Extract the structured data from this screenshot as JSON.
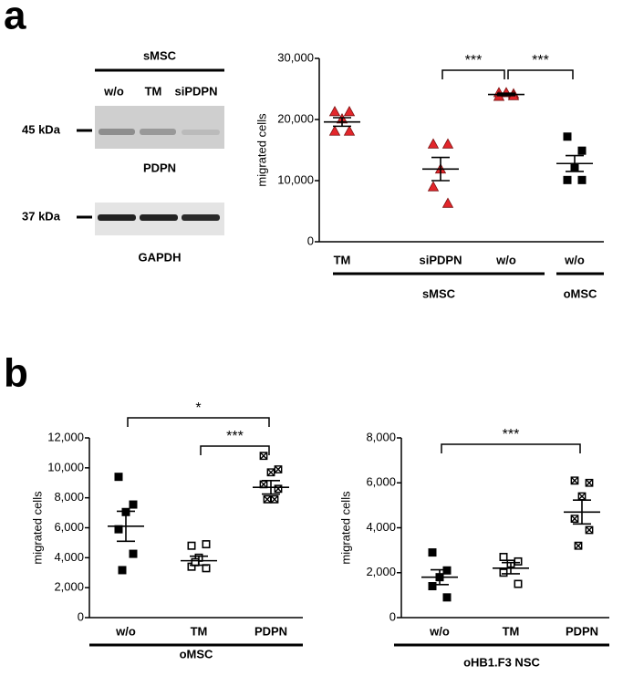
{
  "panel_labels": [
    "a",
    "b"
  ],
  "blot": {
    "header": "sMSC",
    "lanes": [
      "w/o",
      "TM",
      "siPDPN"
    ],
    "markers": [
      "45 kDa",
      "37 kDa"
    ],
    "proteins": [
      "PDPN",
      "GAPDH"
    ]
  },
  "chart_data": [
    {
      "type": "dot",
      "y_label": "migrated cells",
      "categories": [
        "TM",
        "siPDPN",
        "w/o",
        "w/o"
      ],
      "values": [
        [
          21300,
          21300,
          20100,
          18100,
          18100
        ],
        [
          16000,
          16000,
          11900,
          9000,
          6300
        ],
        [
          24400,
          24200,
          24400,
          23800,
          23900
        ],
        [
          17200,
          14900,
          12200,
          10100,
          10100
        ]
      ],
      "mean": [
        19600,
        11900,
        24100,
        12800
      ],
      "sem": [
        700,
        1900,
        200,
        1300
      ],
      "markers": [
        "triangle",
        "triangle",
        "triangle",
        "square-filled"
      ],
      "colors": [
        "#e3262b",
        "#e3262b",
        "#e3262b",
        "#000000"
      ],
      "ylim": [
        0,
        30000
      ],
      "yticks": [
        0,
        {
          "value": 10000,
          "label": "10,000"
        },
        {
          "value": 20000,
          "label": "20,000"
        },
        {
          "value": 30000,
          "label": "30,000"
        }
      ],
      "groups": [
        {
          "label": "sMSC",
          "span": [
            0,
            2
          ]
        },
        {
          "label": "oMSC",
          "span": [
            3,
            3
          ]
        }
      ],
      "brackets": [
        {
          "label": "***",
          "between": [
            1,
            2
          ]
        },
        {
          "label": "***",
          "between": [
            2,
            3
          ]
        }
      ]
    },
    {
      "type": "dot",
      "y_label": "migrated cells",
      "categories": [
        "w/o",
        "TM",
        "PDPN"
      ],
      "values": [
        [
          9400,
          7550,
          7050,
          5900,
          4260,
          3170
        ],
        [
          4800,
          4900,
          4000,
          3400,
          3300,
          3700
        ],
        [
          10800,
          9900,
          9700,
          8900,
          8600,
          7900,
          7900
        ]
      ],
      "mean": [
        6100,
        3800,
        8700
      ],
      "sem": [
        1000,
        300,
        450
      ],
      "markers": [
        "square-filled",
        "square-open",
        "square-crossed"
      ],
      "colors": [
        "#000000",
        "#000000",
        "#000000"
      ],
      "ylim": [
        0,
        12000
      ],
      "yticks": [
        0,
        {
          "value": 2000,
          "label": "2,000"
        },
        {
          "value": 4000,
          "label": "4,000"
        },
        {
          "value": 6000,
          "label": "6,000"
        },
        {
          "value": 8000,
          "label": "8,000"
        },
        {
          "value": 10000,
          "label": "10,000"
        },
        {
          "value": 12000,
          "label": "12,000"
        }
      ],
      "groups": [
        {
          "label": "oMSC",
          "span": [
            0,
            2
          ]
        }
      ],
      "brackets": [
        {
          "label": "*",
          "between": [
            0,
            2
          ]
        },
        {
          "label": "***",
          "between": [
            1,
            2
          ]
        }
      ]
    },
    {
      "type": "dot",
      "y_label": "migrated cells",
      "categories": [
        "w/o",
        "TM",
        "PDPN"
      ],
      "values": [
        [
          2900,
          2100,
          1800,
          1400,
          900
        ],
        [
          2700,
          2500,
          2400,
          2000,
          1500
        ],
        [
          6100,
          6000,
          5400,
          4400,
          3900,
          3200
        ]
      ],
      "mean": [
        1800,
        2200,
        4700
      ],
      "sem": [
        330,
        250,
        530
      ],
      "markers": [
        "square-filled",
        "square-open",
        "square-crossed"
      ],
      "colors": [
        "#000000",
        "#000000",
        "#000000"
      ],
      "ylim": [
        0,
        8000
      ],
      "yticks": [
        0,
        {
          "value": 2000,
          "label": "2,000"
        },
        {
          "value": 4000,
          "label": "4,000"
        },
        {
          "value": 6000,
          "label": "6,000"
        },
        {
          "value": 8000,
          "label": "8,000"
        }
      ],
      "groups": [
        {
          "label": "oHB1.F3 NSC",
          "span": [
            0,
            2
          ]
        }
      ],
      "brackets": [
        {
          "label": "***",
          "between": [
            0,
            2
          ]
        }
      ]
    }
  ]
}
